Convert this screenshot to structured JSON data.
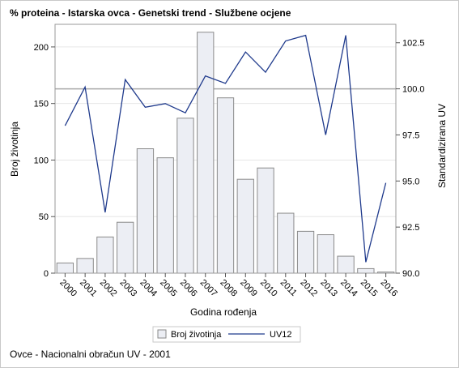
{
  "chart_data": {
    "type": "bar",
    "title": "% proteina - Istarska ovca - Genetski trend - Službene ocjene",
    "xlabel": "Godina rođenja",
    "ylabel_left": "Broj životinja",
    "ylabel_right": "Standardizirana UV",
    "categories": [
      "2000",
      "2001",
      "2002",
      "2003",
      "2004",
      "2005",
      "2006",
      "2007",
      "2008",
      "2009",
      "2010",
      "2011",
      "2012",
      "2013",
      "2014",
      "2015",
      "2016"
    ],
    "series": [
      {
        "name": "Broj životinja",
        "kind": "bar",
        "axis": "left",
        "values": [
          9,
          13,
          32,
          45,
          110,
          102,
          137,
          213,
          155,
          83,
          93,
          53,
          37,
          34,
          15,
          4,
          1
        ]
      },
      {
        "name": "UV12",
        "kind": "line",
        "axis": "right",
        "values": [
          98.0,
          100.1,
          93.3,
          100.5,
          99.0,
          99.2,
          98.7,
          100.7,
          100.3,
          102.0,
          100.9,
          102.6,
          102.9,
          97.5,
          102.9,
          90.6,
          94.9
        ]
      }
    ],
    "ylim_left": [
      0,
      220
    ],
    "ylim_right": [
      90,
      103.5
    ],
    "yticks_left": [
      "0",
      "50",
      "100",
      "150",
      "200"
    ],
    "yticks_right": [
      "90.0",
      "92.5",
      "95.0",
      "97.5",
      "100.0",
      "102.5"
    ],
    "reference_line_right": 100.0,
    "grid": true,
    "legend_position": "bottom",
    "colors": {
      "bar_fill": "#eceef4",
      "bar_stroke": "#8a8a8a",
      "line": "#1f3a8c",
      "refline": "#a9a9a9",
      "grid": "#e6e6e6"
    }
  },
  "footnote": "Ovce - Nacionalni obračun UV - 2001"
}
